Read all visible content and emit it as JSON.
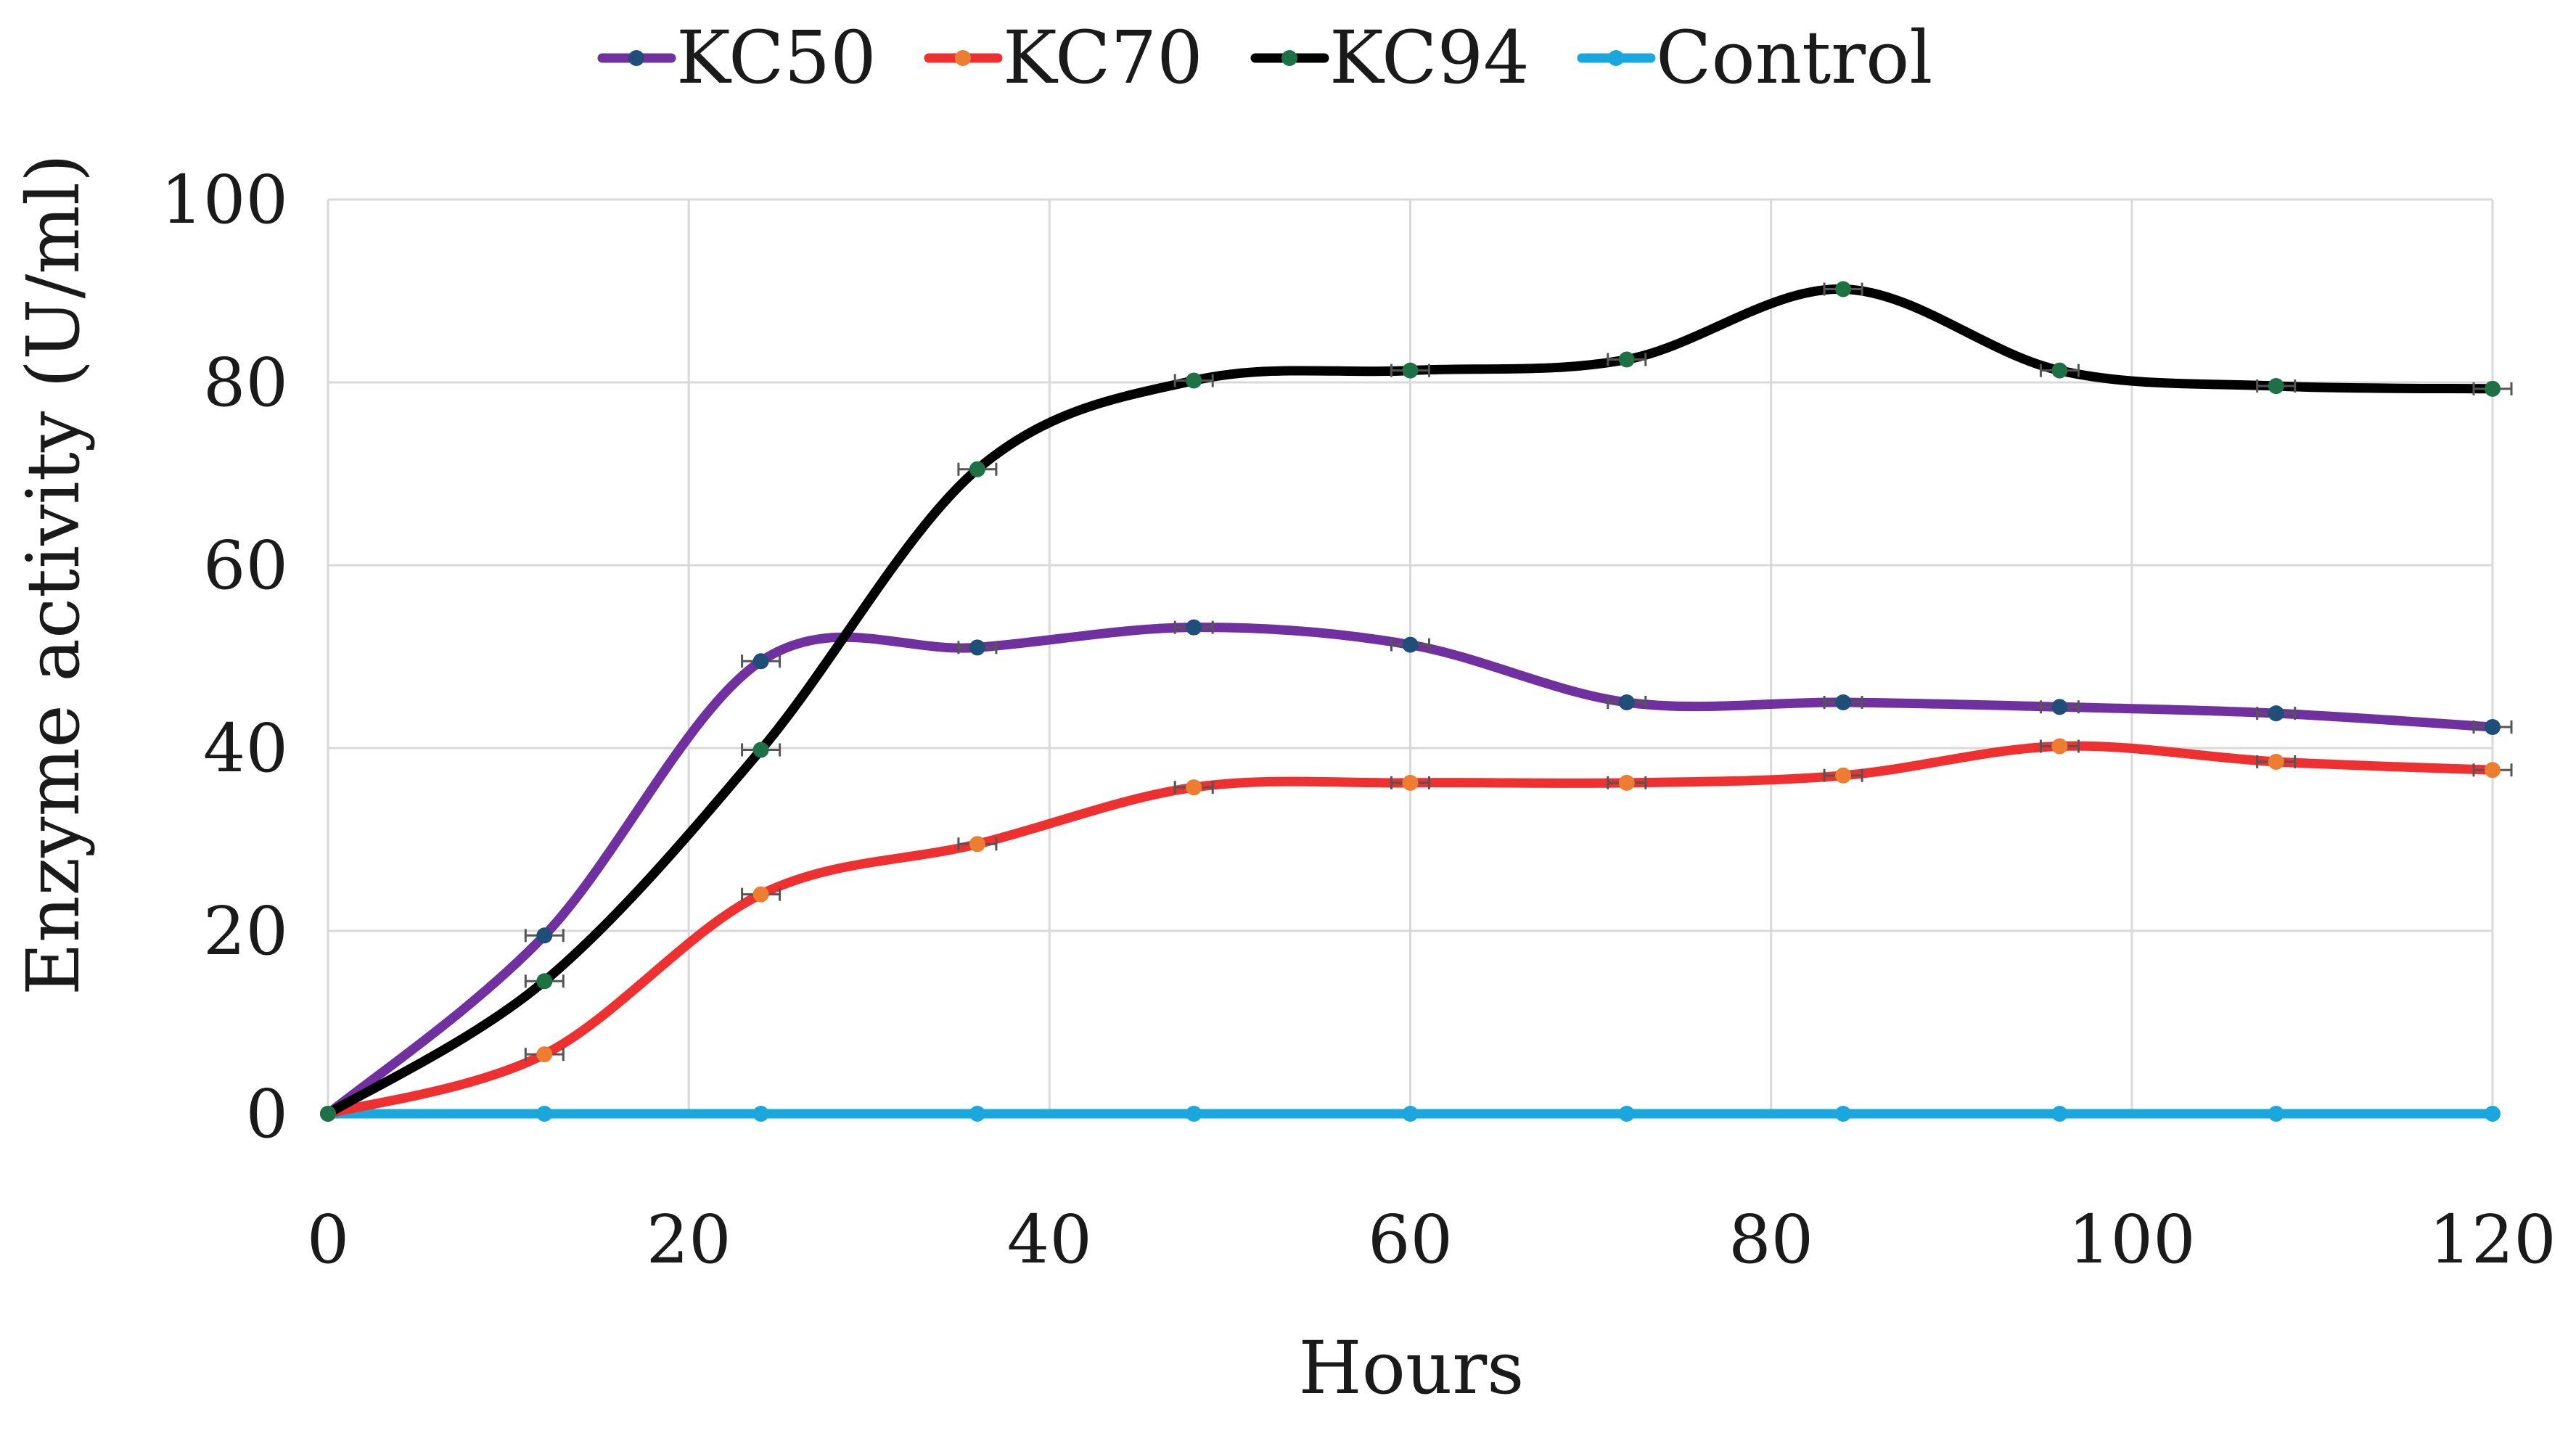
{
  "chart_data": {
    "type": "line",
    "title": "",
    "xlabel": "Hours",
    "ylabel": "Enzyme activity (U/ml)",
    "xlim": [
      0,
      120
    ],
    "ylim": [
      0,
      100
    ],
    "x_ticks": [
      0,
      20,
      40,
      60,
      80,
      100,
      120
    ],
    "y_ticks": [
      0,
      20,
      40,
      60,
      80,
      100
    ],
    "grid": true,
    "legend_position": "top",
    "x": [
      0,
      12,
      24,
      36,
      48,
      60,
      72,
      84,
      96,
      108,
      120
    ],
    "series": [
      {
        "name": "KC50",
        "color": "#7030A0",
        "marker_color": "#1F4E79",
        "values": [
          0,
          19.5,
          49.5,
          51,
          53.2,
          51.3,
          45,
          45,
          44.5,
          43.8,
          42.3
        ]
      },
      {
        "name": "KC70",
        "color": "#EE3030",
        "marker_color": "#ED7D31",
        "values": [
          0,
          6.5,
          24,
          29.5,
          35.7,
          36.2,
          36.2,
          37,
          40.2,
          38.5,
          37.6
        ]
      },
      {
        "name": "KC94",
        "color": "#000000",
        "marker_color": "#1E7145",
        "values": [
          0,
          14.5,
          39.8,
          70.5,
          80.2,
          81.3,
          82.5,
          90.2,
          81.3,
          79.6,
          79.3
        ]
      },
      {
        "name": "Control",
        "color": "#1AA7DE",
        "marker_color": "#1AA7DE",
        "values": [
          0,
          0,
          0,
          0,
          0,
          0,
          0,
          0,
          0,
          0,
          0
        ]
      }
    ]
  }
}
